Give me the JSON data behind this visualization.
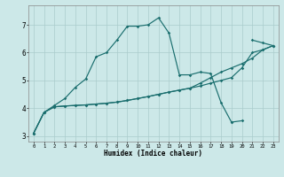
{
  "xlabel": "Humidex (Indice chaleur)",
  "background_color": "#cce8e8",
  "grid_color": "#aacccc",
  "line_color": "#1a6e6e",
  "xlim": [
    -0.5,
    23.5
  ],
  "ylim": [
    2.8,
    7.7
  ],
  "xticks": [
    0,
    1,
    2,
    3,
    4,
    5,
    6,
    7,
    8,
    9,
    10,
    11,
    12,
    13,
    14,
    15,
    16,
    17,
    18,
    19,
    20,
    21,
    22,
    23
  ],
  "yticks": [
    3,
    4,
    5,
    6,
    7
  ],
  "lines": [
    {
      "x": [
        0,
        1,
        2,
        3,
        4,
        5,
        6,
        7,
        8,
        9,
        10,
        11,
        12,
        13,
        14,
        15,
        16,
        17,
        18,
        19,
        20,
        21,
        22,
        23
      ],
      "y": [
        3.1,
        3.85,
        4.05,
        4.08,
        4.1,
        4.12,
        4.15,
        4.18,
        4.22,
        4.28,
        4.35,
        4.42,
        4.5,
        4.58,
        4.65,
        4.72,
        4.8,
        4.9,
        5.0,
        5.1,
        5.45,
        6.0,
        6.1,
        6.25
      ]
    },
    {
      "x": [
        0,
        1,
        2,
        3,
        4,
        5,
        6,
        7,
        8,
        9,
        10,
        11,
        12,
        13,
        14,
        15,
        16,
        17,
        18,
        19,
        20,
        21,
        22,
        23
      ],
      "y": [
        3.1,
        3.85,
        4.05,
        4.08,
        4.1,
        4.12,
        4.15,
        4.18,
        4.22,
        4.28,
        4.35,
        4.42,
        4.5,
        4.58,
        4.65,
        4.72,
        4.9,
        5.1,
        5.3,
        5.45,
        5.6,
        5.8,
        6.1,
        6.25
      ]
    },
    {
      "x": [
        0,
        1,
        2,
        3,
        4,
        5,
        6,
        7,
        8,
        9,
        10,
        11,
        12,
        13,
        14,
        15,
        16,
        17,
        18,
        19,
        20,
        21,
        22,
        23
      ],
      "y": [
        3.1,
        3.85,
        4.1,
        4.35,
        4.75,
        5.05,
        5.85,
        6.0,
        6.45,
        6.95,
        6.95,
        7.0,
        7.25,
        6.7,
        5.2,
        5.2,
        5.3,
        5.25,
        4.2,
        3.5,
        3.55,
        null,
        null,
        null
      ]
    },
    {
      "x": [
        19,
        20,
        21,
        22,
        23
      ],
      "y": [
        3.5,
        null,
        6.45,
        6.35,
        6.25
      ]
    }
  ]
}
